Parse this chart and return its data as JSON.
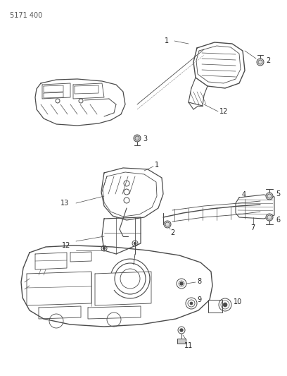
{
  "title": "5171 400",
  "background_color": "#ffffff",
  "line_color": "#4a4a4a",
  "text_color": "#222222",
  "fig_width": 4.08,
  "fig_height": 5.33,
  "dpi": 100
}
